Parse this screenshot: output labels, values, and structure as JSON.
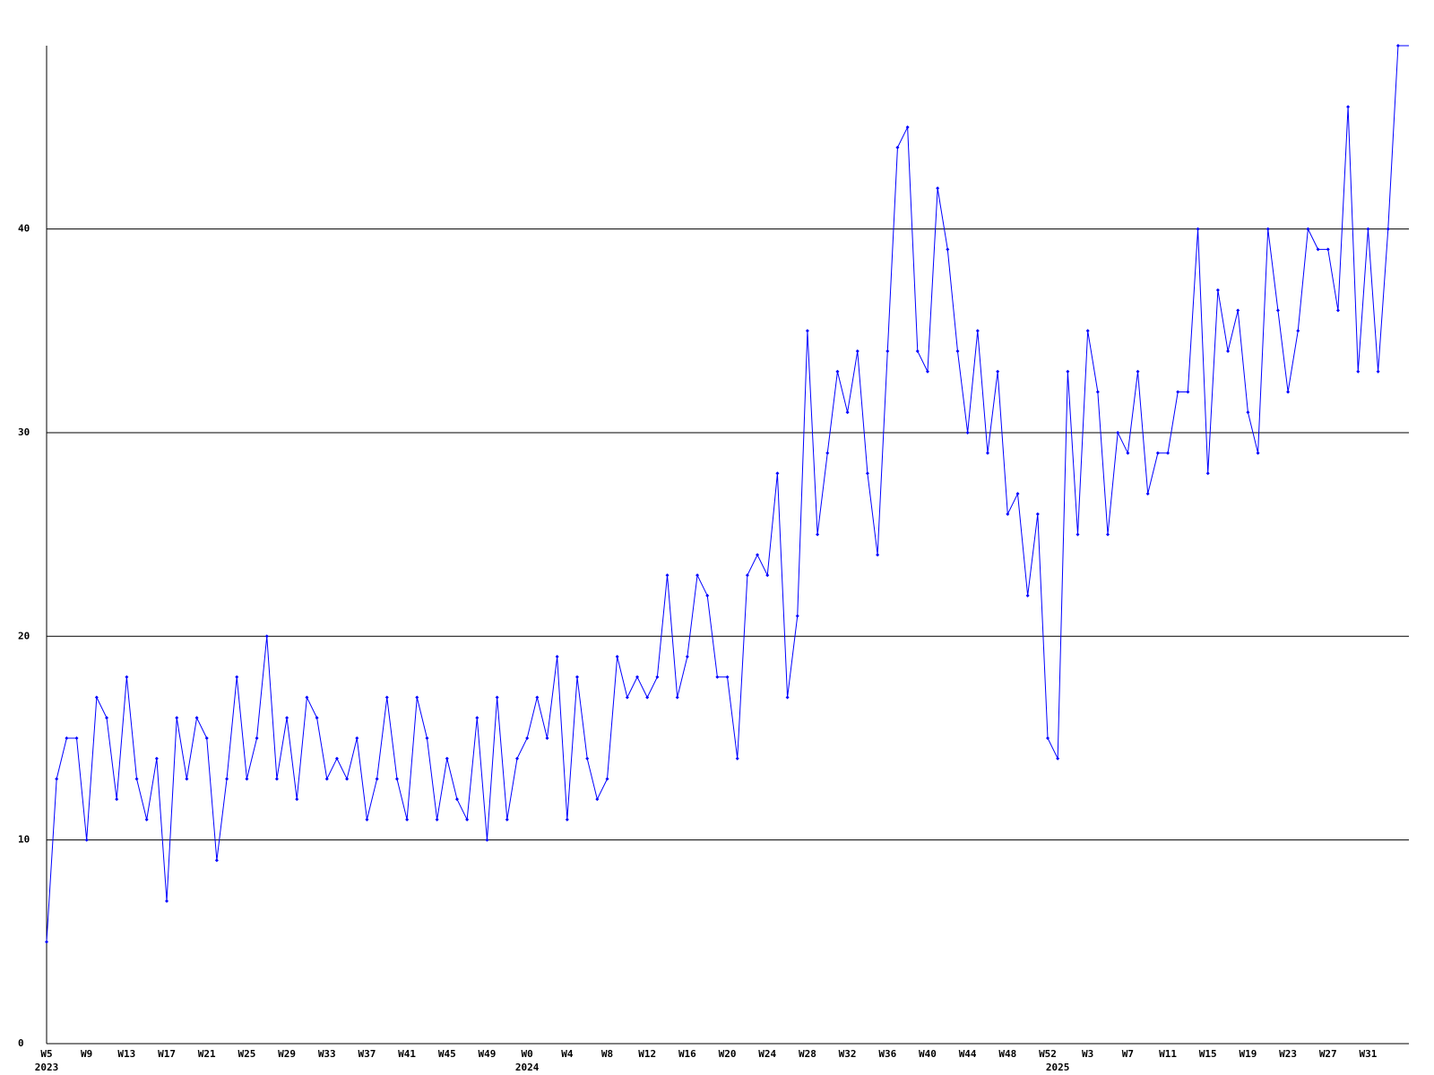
{
  "chart_data": {
    "type": "line",
    "categories": [
      "W5",
      null,
      null,
      null,
      "W9",
      null,
      null,
      null,
      "W13",
      null,
      null,
      null,
      "W17",
      null,
      null,
      null,
      "W21",
      null,
      null,
      null,
      "W25",
      null,
      null,
      null,
      "W29",
      null,
      null,
      null,
      "W33",
      null,
      null,
      null,
      "W37",
      null,
      null,
      null,
      "W41",
      null,
      null,
      null,
      "W45",
      null,
      null,
      null,
      "W49",
      null,
      null,
      null,
      "W0",
      null,
      null,
      null,
      "W4",
      null,
      null,
      null,
      "W8",
      null,
      null,
      null,
      "W12",
      null,
      null,
      null,
      "W16",
      null,
      null,
      null,
      "W20",
      null,
      null,
      null,
      "W24",
      null,
      null,
      null,
      "W28",
      null,
      null,
      null,
      "W32",
      null,
      null,
      null,
      "W36",
      null,
      null,
      null,
      "W40",
      null,
      null,
      null,
      "W44",
      null,
      null,
      null,
      "W48",
      null,
      null,
      null,
      "W52",
      null,
      null,
      null,
      "W3",
      null,
      null,
      null,
      "W7",
      null,
      null,
      null,
      "W11",
      null,
      null,
      null,
      "W15",
      null,
      null,
      null,
      "W19",
      null,
      null,
      null,
      "W23",
      null,
      null,
      null,
      "W27",
      null,
      null,
      null,
      "W31",
      null,
      null,
      null
    ],
    "year_labels": [
      {
        "label": "2023",
        "index": 0
      },
      {
        "label": "2024",
        "index": 48
      },
      {
        "label": "2025",
        "index": 101
      }
    ],
    "values": [
      5,
      13,
      15,
      15,
      10,
      17,
      16,
      12,
      18,
      13,
      11,
      14,
      7,
      16,
      13,
      16,
      15,
      9,
      13,
      18,
      13,
      15,
      20,
      13,
      16,
      12,
      17,
      16,
      13,
      14,
      13,
      15,
      11,
      13,
      17,
      13,
      11,
      17,
      15,
      11,
      14,
      12,
      11,
      16,
      10,
      17,
      11,
      14,
      15,
      17,
      15,
      19,
      11,
      18,
      14,
      12,
      13,
      19,
      17,
      18,
      17,
      18,
      23,
      17,
      19,
      23,
      22,
      18,
      18,
      14,
      23,
      24,
      23,
      28,
      17,
      21,
      35,
      25,
      29,
      33,
      31,
      34,
      28,
      24,
      34,
      44,
      45,
      34,
      33,
      42,
      39,
      34,
      30,
      35,
      29,
      33,
      26,
      27,
      22,
      26,
      15,
      14,
      33,
      25,
      35,
      32,
      25,
      30,
      29,
      33,
      27,
      29,
      29,
      32,
      32,
      40,
      28,
      37,
      34,
      36,
      31,
      29,
      40,
      36,
      32,
      35,
      40,
      39,
      39,
      36,
      46,
      33,
      40,
      33,
      40,
      49
    ],
    "color": "#0000ff",
    "ylim": [
      0,
      49
    ],
    "yticks": [
      0,
      10,
      20,
      30,
      40
    ],
    "grid": true
  }
}
